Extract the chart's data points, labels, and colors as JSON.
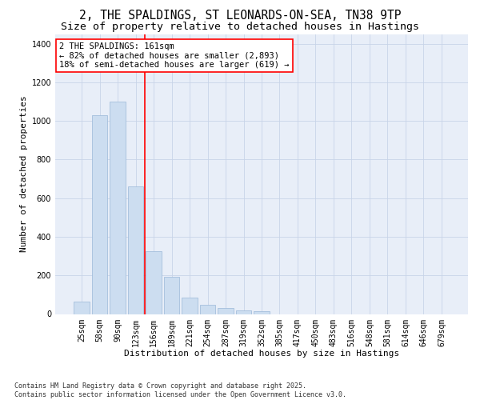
{
  "title_line1": "2, THE SPALDINGS, ST LEONARDS-ON-SEA, TN38 9TP",
  "title_line2": "Size of property relative to detached houses in Hastings",
  "xlabel": "Distribution of detached houses by size in Hastings",
  "ylabel": "Number of detached properties",
  "categories": [
    "25sqm",
    "58sqm",
    "90sqm",
    "123sqm",
    "156sqm",
    "189sqm",
    "221sqm",
    "254sqm",
    "287sqm",
    "319sqm",
    "352sqm",
    "385sqm",
    "417sqm",
    "450sqm",
    "483sqm",
    "516sqm",
    "548sqm",
    "581sqm",
    "614sqm",
    "646sqm",
    "679sqm"
  ],
  "values": [
    65,
    1030,
    1100,
    660,
    325,
    193,
    85,
    47,
    30,
    20,
    15,
    0,
    0,
    0,
    0,
    0,
    0,
    0,
    0,
    0,
    0
  ],
  "bar_color": "#ccddf0",
  "bar_edgecolor": "#9ab8d8",
  "grid_color": "#c8d4e8",
  "background_color": "#ffffff",
  "plot_bg_color": "#e8eef8",
  "vline_color": "red",
  "vline_x_index": 4,
  "annotation_text": "2 THE SPALDINGS: 161sqm\n← 82% of detached houses are smaller (2,893)\n18% of semi-detached houses are larger (619) →",
  "annotation_box_edgecolor": "red",
  "ylim": [
    0,
    1450
  ],
  "yticks": [
    0,
    200,
    400,
    600,
    800,
    1000,
    1200,
    1400
  ],
  "footnote": "Contains HM Land Registry data © Crown copyright and database right 2025.\nContains public sector information licensed under the Open Government Licence v3.0.",
  "title_fontsize": 10.5,
  "subtitle_fontsize": 9.5,
  "label_fontsize": 8,
  "tick_fontsize": 7,
  "annot_fontsize": 7.5,
  "footnote_fontsize": 6
}
